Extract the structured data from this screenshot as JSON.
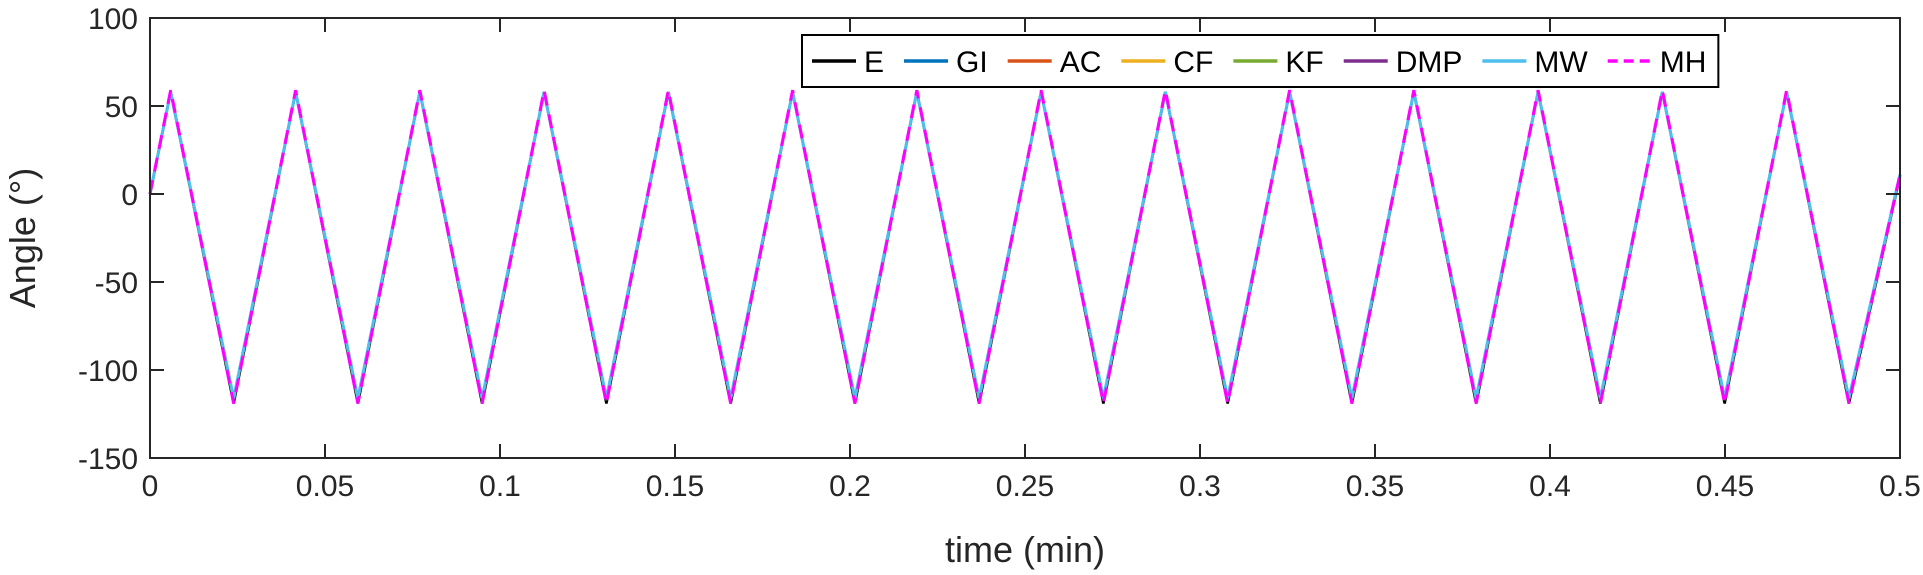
{
  "chart_data": {
    "type": "line",
    "xlabel": "time (min)",
    "ylabel": "Angle (°)",
    "xlim": [
      0,
      0.5
    ],
    "ylim": [
      -150,
      100
    ],
    "x_ticks": [
      0,
      0.05,
      0.1,
      0.15,
      0.2,
      0.25,
      0.3,
      0.35,
      0.4,
      0.45,
      0.5
    ],
    "x_tick_labels": [
      "0",
      "0.05",
      "0.1",
      "0.15",
      "0.2",
      "0.25",
      "0.3",
      "0.35",
      "0.4",
      "0.45",
      "0.5"
    ],
    "y_ticks": [
      100,
      50,
      0,
      -50,
      -100,
      -150
    ],
    "y_tick_labels": [
      "100",
      "50",
      "0",
      "-50",
      "-100",
      "-150"
    ],
    "grid": false,
    "legend_position": "top-right",
    "x": [
      0,
      0.0059,
      0.0239,
      0.0416,
      0.0594,
      0.0771,
      0.0949,
      0.1126,
      0.1304,
      0.1481,
      0.1659,
      0.1836,
      0.2014,
      0.2191,
      0.2369,
      0.2546,
      0.2724,
      0.2901,
      0.3079,
      0.3256,
      0.3434,
      0.3611,
      0.3789,
      0.3966,
      0.4144,
      0.4321,
      0.4499,
      0.4676,
      0.4854,
      0.5
    ],
    "series": [
      {
        "name": "E",
        "color": "#000000",
        "dash": "solid",
        "width": 2.6,
        "values": [
          0,
          58,
          -119,
          58,
          -119,
          58,
          -119,
          58,
          -119,
          58,
          -119,
          58,
          -119,
          58,
          -119,
          58,
          -119,
          58,
          -119,
          58,
          -119,
          58,
          -119,
          58,
          -119,
          58,
          -119,
          58,
          -119,
          10
        ]
      },
      {
        "name": "GI",
        "color": "#0072BD",
        "dash": "solid",
        "width": 2.6,
        "values": [
          0,
          58,
          -117,
          58,
          -117,
          58,
          -117,
          58,
          -117,
          58,
          -117,
          58,
          -117,
          58,
          -117,
          58,
          -117,
          58,
          -117,
          58,
          -117,
          58,
          -117,
          58,
          -117,
          58,
          -117,
          58,
          -117,
          11
        ]
      },
      {
        "name": "AC",
        "color": "#D95319",
        "dash": "solid",
        "width": 2.6,
        "values": [
          0,
          58,
          -117,
          58,
          -117,
          58,
          -117,
          58,
          -117,
          58,
          -117,
          58,
          -117,
          58,
          -117,
          58,
          -117,
          58,
          -117,
          58,
          -117,
          58,
          -117,
          58,
          -117,
          58,
          -117,
          58,
          -117,
          11
        ]
      },
      {
        "name": "CF",
        "color": "#EDB120",
        "dash": "solid",
        "width": 2.6,
        "values": [
          0,
          58,
          -117,
          58,
          -117,
          58,
          -117,
          58,
          -117,
          58,
          -117,
          58,
          -117,
          58,
          -117,
          58,
          -117,
          58,
          -117,
          58,
          -117,
          58,
          -117,
          58,
          -117,
          58,
          -117,
          58,
          -117,
          11
        ]
      },
      {
        "name": "KF",
        "color": "#77AC30",
        "dash": "solid",
        "width": 2.6,
        "values": [
          0,
          58,
          -117,
          58,
          -117,
          58,
          -117,
          58,
          -117,
          58,
          -117,
          58,
          -117,
          58,
          -117,
          58,
          -117,
          58,
          -117,
          58,
          -117,
          58,
          -117,
          58,
          -117,
          58,
          -117,
          58,
          -117,
          11
        ]
      },
      {
        "name": "DMP",
        "color": "#7E2F8E",
        "dash": "solid",
        "width": 2.6,
        "values": [
          0,
          58,
          -117,
          58,
          -117,
          58,
          -117,
          58,
          -117,
          58,
          -117,
          58,
          -117,
          58,
          -117,
          58,
          -117,
          58,
          -117,
          58,
          -117,
          58,
          -117,
          58,
          -117,
          58,
          -117,
          58,
          -117,
          11
        ]
      },
      {
        "name": "MW",
        "color": "#4DBEEE",
        "dash": "solid",
        "width": 3,
        "values": [
          0,
          58,
          -116,
          58,
          -116,
          58,
          -116,
          58,
          -116,
          58,
          -116,
          58,
          -116,
          58,
          -116,
          58,
          -116,
          58,
          -116,
          58,
          -116,
          58,
          -116,
          58,
          -116,
          58,
          -116,
          58,
          -116,
          11
        ]
      },
      {
        "name": "MH",
        "color": "#FF00FF",
        "dash": "dashed",
        "width": 3,
        "values": [
          0,
          59,
          -119,
          59,
          -119,
          59,
          -119,
          59,
          -119,
          59,
          -119,
          59,
          -119,
          59,
          -119,
          59,
          -119,
          59,
          -119,
          59,
          -119,
          59,
          -119,
          59,
          -119,
          59,
          -119,
          59,
          -119,
          11
        ]
      }
    ]
  }
}
